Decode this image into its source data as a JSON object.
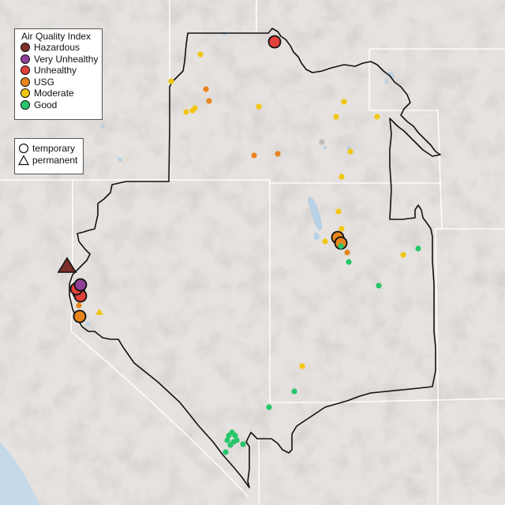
{
  "legend": {
    "title": "Air Quality Index",
    "categories": [
      {
        "label": "Hazardous",
        "color": "#7e2f2a"
      },
      {
        "label": "Very Unhealthy",
        "color": "#8f3f97"
      },
      {
        "label": "Unhealthy",
        "color": "#e2413a"
      },
      {
        "label": "USG",
        "color": "#e8851e"
      },
      {
        "label": "Moderate",
        "color": "#f2c612"
      },
      {
        "label": "Good",
        "color": "#27c66a"
      }
    ],
    "types": [
      {
        "label": "temporary",
        "shape": "circle"
      },
      {
        "label": "permanent",
        "shape": "triangle"
      }
    ]
  },
  "colors": {
    "land": "#e6e2df",
    "water": "#b8d1e4",
    "ocean": "#c4d9ea",
    "state_line": "#ffffff",
    "boundary": "#111111"
  },
  "monitors": [
    {
      "label": "temporary monitor",
      "shape": "circle",
      "category": "Unhealthy",
      "size": "large"
    },
    {
      "label": "temporary monitor",
      "shape": "circle",
      "category": "Moderate",
      "size": "small"
    },
    {
      "label": "temporary monitor",
      "shape": "circle",
      "category": "USG",
      "size": "large"
    },
    {
      "label": "temporary monitor",
      "shape": "circle",
      "category": "Very Unhealthy",
      "size": "large"
    },
    {
      "label": "temporary monitor",
      "shape": "circle",
      "category": "Good",
      "size": "small"
    },
    {
      "label": "permanent monitor",
      "shape": "triangle",
      "category": "Hazardous",
      "size": "large"
    },
    {
      "label": "permanent monitor",
      "shape": "triangle",
      "category": "Moderate",
      "size": "small"
    }
  ]
}
